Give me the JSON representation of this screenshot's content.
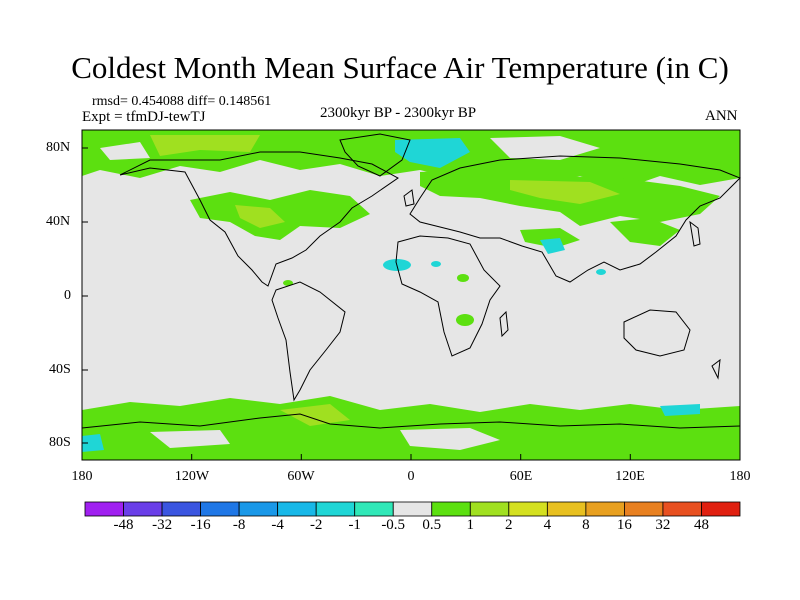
{
  "title": "Coldest Month Mean Surface Air Temperature (in C)",
  "stats": "rmsd= 0.454088 diff= 0.148561",
  "experiment": "Expt = tfmDJ-tewTJ",
  "period": "2300kyr BP - 2300kyr BP",
  "season": "ANN",
  "lat_labels": [
    "80N",
    "40N",
    "0",
    "40S",
    "80S"
  ],
  "lon_labels": [
    "180",
    "120W",
    "60W",
    "0",
    "60E",
    "120E",
    "180"
  ],
  "colorbar": {
    "labels": [
      "-48",
      "-32",
      "-16",
      "-8",
      "-4",
      "-2",
      "-1",
      "-0.5",
      "0.5",
      "1",
      "2",
      "4",
      "8",
      "16",
      "32",
      "48"
    ],
    "colors": [
      "#a020f0",
      "#6a3ee8",
      "#3a55e0",
      "#1f77e6",
      "#1a98e8",
      "#18b8e8",
      "#1fd6d6",
      "#30e8b8",
      "#e6e6e6",
      "#5ce010",
      "#a0e020",
      "#d4e020",
      "#e8c020",
      "#e8a020",
      "#e88020",
      "#e85020",
      "#e02010"
    ]
  },
  "map": {
    "background": "#e6e6e6",
    "coast_color": "#000000"
  }
}
